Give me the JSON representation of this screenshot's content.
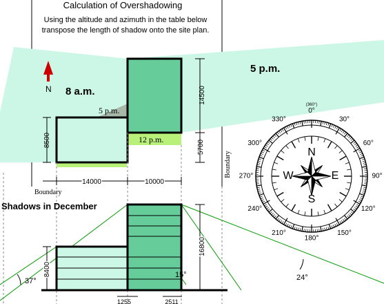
{
  "title": "Calculation of Overshadowing",
  "instruction_line1": "Using the altitude and azimuth in the table below",
  "instruction_line2": "transpose the length of shadow onto the site plan.",
  "plan": {
    "label_8am": "8 a.m.",
    "label_5pm_main": "5 p.m.",
    "label_5pm_small": "5 p.m.",
    "label_12pm": "12 p.m.",
    "north_letter": "N",
    "dim_14500": "14500",
    "dim_8500": "8500",
    "dim_5700": "5700",
    "dim_14000": "14000",
    "dim_10000": "10000",
    "boundary_bottom": "Boundary",
    "boundary_right": "Boundary"
  },
  "section": {
    "heading": "Shadows in December",
    "dim_16800": "16800",
    "dim_8400": "8400",
    "angle_left": "37°",
    "angle_right": "24°",
    "angle_mid": "15°",
    "dim_1255": "1255",
    "dim_2511": "2511"
  },
  "compass": {
    "top_small": "(360°)",
    "top_zero": "0°",
    "cardinal": {
      "n": "N",
      "s": "S",
      "e": "E",
      "w": "W"
    },
    "degrees": [
      {
        "label": "330°",
        "angle": 330
      },
      {
        "label": "30°",
        "angle": 30
      },
      {
        "label": "300°",
        "angle": 300
      },
      {
        "label": "60°",
        "angle": 60
      },
      {
        "label": "270°",
        "angle": 270
      },
      {
        "label": "90°",
        "angle": 90
      },
      {
        "label": "240°",
        "angle": 240
      },
      {
        "label": "120°",
        "angle": 120
      },
      {
        "label": "210°",
        "angle": 210
      },
      {
        "label": "150°",
        "angle": 150
      },
      {
        "label": "180°",
        "angle": 180
      }
    ]
  },
  "colors": {
    "shadow_light": "#ccf7e6",
    "shadow_dark": "#9bd7b5",
    "building": "#66cc99",
    "lime": "#b8f07a",
    "north_arrow": "#cc0000",
    "gray_wedge": "#a8b8a8"
  }
}
